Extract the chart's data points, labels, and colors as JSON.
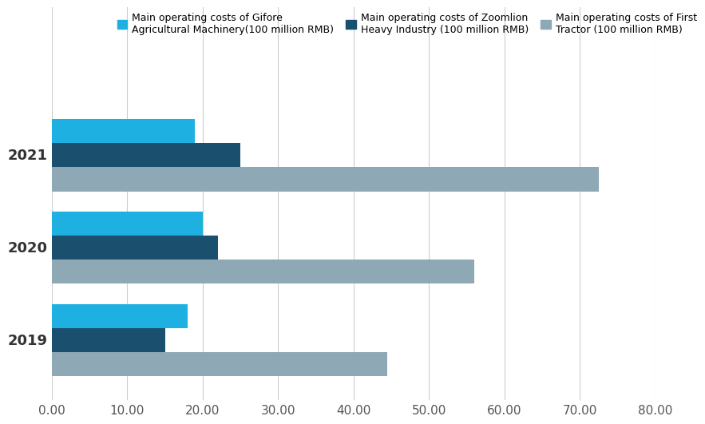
{
  "years": [
    "2021",
    "2020",
    "2019"
  ],
  "gifore": [
    19.0,
    20.0,
    18.0
  ],
  "zoomlion": [
    25.0,
    22.0,
    15.0
  ],
  "first_tractor": [
    72.5,
    56.0,
    44.5
  ],
  "gifore_color": "#1EB0E0",
  "zoomlion_color": "#1A4F6E",
  "first_tractor_color": "#8FA8B5",
  "xlim": [
    0,
    80
  ],
  "xticks": [
    0,
    10,
    20,
    30,
    40,
    50,
    60,
    70,
    80
  ],
  "xtick_labels": [
    "0.00",
    "10.00",
    "20.00",
    "30.00",
    "40.00",
    "50.00",
    "60.00",
    "70.00",
    "80.00"
  ],
  "legend_gifore": "Main operating costs of Gifore\nAgricultural Machinery(100 million RMB)",
  "legend_zoomlion": "Main operating costs of Zoomlion\nHeavy Industry (100 million RMB)",
  "legend_first_tractor": "Main operating costs of First\nTractor (100 million RMB)",
  "background_color": "#FFFFFF",
  "grid_color": "#CCCCCC",
  "bar_height": 0.26,
  "fontsize_tick": 11,
  "fontsize_legend": 9
}
